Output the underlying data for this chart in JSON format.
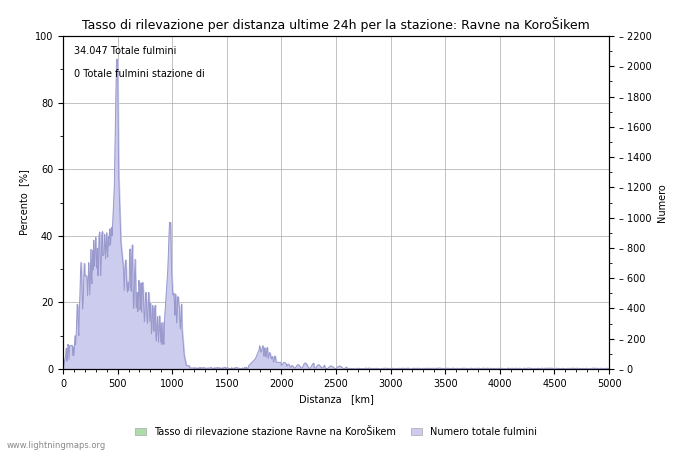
{
  "title": "Tasso di rilevazione per distanza ultime 24h per la stazione: Ravne na KoroŠikem",
  "annotation_line1": "34.047 Totale fulmini",
  "annotation_line2": "0 Totale fulmini stazione di",
  "xlabel": "Distanza   [km]",
  "ylabel_left": "Percento  [%]",
  "ylabel_right": "Numero",
  "xlim": [
    0,
    5000
  ],
  "ylim_left": [
    0,
    100
  ],
  "ylim_right": [
    0,
    2200
  ],
  "xticks": [
    0,
    500,
    1000,
    1500,
    2000,
    2500,
    3000,
    3500,
    4000,
    4500,
    5000
  ],
  "yticks_left": [
    0,
    20,
    40,
    60,
    80,
    100
  ],
  "yticks_right": [
    0,
    200,
    400,
    600,
    800,
    1000,
    1200,
    1400,
    1600,
    1800,
    2000,
    2200
  ],
  "line_color": "#9999cc",
  "fill_color": "#ccccee",
  "grid_color": "#aaaaaa",
  "background_color": "#ffffff",
  "legend_label1": "Tasso di rilevazione stazione Ravne na KoroŠikem",
  "legend_label2": "Numero totale fulmini",
  "legend_color1": "#aaddaa",
  "legend_color2": "#ccccee",
  "watermark": "www.lightningmaps.org",
  "title_fontsize": 9,
  "axis_fontsize": 7,
  "tick_fontsize": 7,
  "annotation_fontsize": 7,
  "legend_fontsize": 7,
  "watermark_fontsize": 6
}
